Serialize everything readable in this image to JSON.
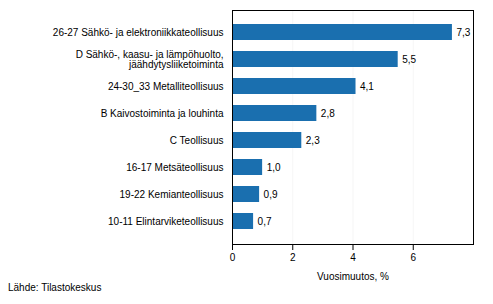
{
  "chart_data": {
    "type": "bar",
    "orientation": "horizontal",
    "categories": [
      "10-11 Elintarviketeollisuus",
      "19-22 Kemianteollisuus",
      "16-17 Metsäteollisuus",
      "C Teollisuus",
      "B Kaivostoiminta ja louhinta",
      "24-30_33 Metalliteollisuus",
      "D Sähkö-, kaasu- ja lämpöhuolto,\njäähdytysliiketoiminta",
      "26-27 Sähkö- ja elektroniikkateollisuus"
    ],
    "values": [
      0.7,
      0.9,
      1.0,
      2.3,
      2.8,
      4.1,
      5.5,
      7.3
    ],
    "value_labels": [
      "0,7",
      "0,9",
      "1,0",
      "2,3",
      "2,8",
      "4,1",
      "5,5",
      "7,3"
    ],
    "data_labels": true,
    "color": "#1a6faf",
    "xlabel": "Vuosimuutos, %",
    "xlim": [
      0,
      8
    ],
    "xticks": [
      0,
      2,
      4,
      6
    ],
    "grid": true,
    "annotations": [
      "Lähde: Tilastokeskus"
    ]
  }
}
